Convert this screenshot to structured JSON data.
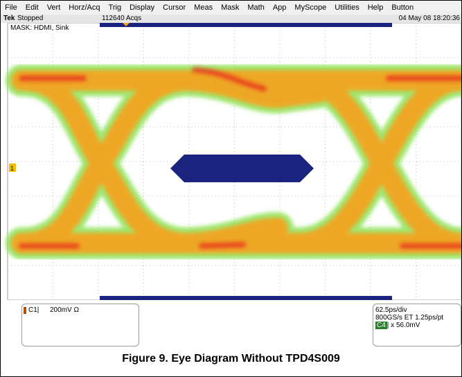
{
  "menu": [
    "File",
    "Edit",
    "Vert",
    "Horz/Acq",
    "Trig",
    "Display",
    "Cursor",
    "Meas",
    "Mask",
    "Math",
    "App",
    "MyScope",
    "Utilities",
    "Help",
    "Button"
  ],
  "status": {
    "brand": "Tek",
    "state": "Stopped",
    "acqs": "112640 Acqs",
    "date": "04 May 08 18:20:36"
  },
  "mask_label": "MASK: HDMI, Sink",
  "channel_marker": "1",
  "channel_panel": {
    "channel": "C1|",
    "scale": "200mV Ω"
  },
  "timebase_panel": {
    "line1": "62.5ps/div",
    "line2": "800GS/s ET 1.25ps/pt",
    "badge": "C4",
    "line3": "| x 56.0mV"
  },
  "caption": "Figure 9. Eye Diagram Without TPD4S009"
}
